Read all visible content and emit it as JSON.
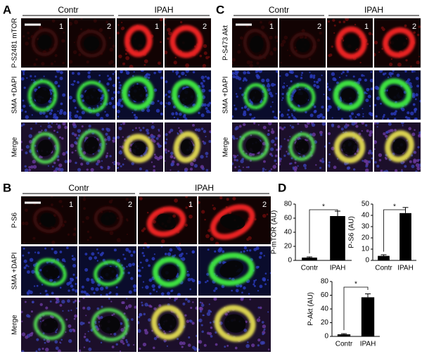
{
  "panels": [
    {
      "letter": "A",
      "groups": [
        "Contr",
        "IPAH"
      ],
      "column_numbers": [
        "1",
        "2",
        "1",
        "2"
      ],
      "row_labels": [
        "P-S2481 mTOR",
        "SMA +DAPI",
        "Merge"
      ]
    },
    {
      "letter": "C",
      "groups": [
        "Contr",
        "IPAH"
      ],
      "column_numbers": [
        "1",
        "2",
        "1",
        "2"
      ],
      "row_labels": [
        "P-S473 Akt",
        "SMA +DAPI",
        "Merge"
      ]
    },
    {
      "letter": "B",
      "groups": [
        "Contr",
        "IPAH"
      ],
      "column_numbers": [
        "1",
        "2",
        "1",
        "2"
      ],
      "row_labels": [
        "P-S6",
        "SMA +DAPI",
        "Merge"
      ]
    },
    {
      "letter": "D"
    }
  ],
  "chart_data": [
    {
      "type": "bar",
      "y_label": "P-mTOR (AU)",
      "categories": [
        "Contr",
        "IPAH"
      ],
      "values": [
        4,
        63
      ],
      "errors": [
        1,
        7
      ],
      "annotation": "*",
      "color": "#000000",
      "ylim": [
        0,
        80
      ],
      "yticks": [
        0,
        20,
        40,
        60,
        80
      ]
    },
    {
      "type": "bar",
      "y_label": "P-S6 (AU)",
      "categories": [
        "Contr",
        "IPAH"
      ],
      "values": [
        4,
        42
      ],
      "errors": [
        1,
        5
      ],
      "annotation": "*",
      "color": "#000000",
      "ylim": [
        0,
        50
      ],
      "yticks": [
        0,
        10,
        20,
        30,
        40,
        50
      ]
    },
    {
      "type": "bar",
      "y_label": "P-Akt (AU)",
      "categories": [
        "Contr",
        "IPAH"
      ],
      "values": [
        3,
        57
      ],
      "errors": [
        1,
        5
      ],
      "annotation": "*",
      "color": "#000000",
      "ylim": [
        0,
        80
      ],
      "yticks": [
        0,
        20,
        40,
        60,
        80
      ]
    }
  ]
}
